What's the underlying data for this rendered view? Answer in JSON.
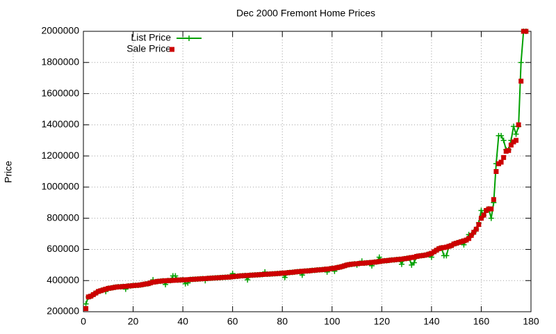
{
  "chart_data": {
    "type": "line",
    "title": "Dec 2000 Fremont Home Prices",
    "y_label": "Price",
    "x": [
      1,
      2,
      3,
      4,
      5,
      6,
      7,
      8,
      9,
      10,
      11,
      12,
      13,
      14,
      15,
      16,
      17,
      18,
      19,
      20,
      21,
      22,
      23,
      24,
      25,
      26,
      27,
      28,
      29,
      30,
      31,
      32,
      33,
      34,
      35,
      36,
      37,
      38,
      39,
      40,
      41,
      42,
      43,
      44,
      45,
      46,
      47,
      48,
      49,
      50,
      51,
      52,
      53,
      54,
      55,
      56,
      57,
      58,
      59,
      60,
      61,
      62,
      63,
      64,
      65,
      66,
      67,
      68,
      69,
      70,
      71,
      72,
      73,
      74,
      75,
      76,
      77,
      78,
      79,
      80,
      81,
      82,
      83,
      84,
      85,
      86,
      87,
      88,
      89,
      90,
      91,
      92,
      93,
      94,
      95,
      96,
      97,
      98,
      99,
      100,
      101,
      102,
      103,
      104,
      105,
      106,
      107,
      108,
      109,
      110,
      111,
      112,
      113,
      114,
      115,
      116,
      117,
      118,
      119,
      120,
      121,
      122,
      123,
      124,
      125,
      126,
      127,
      128,
      129,
      130,
      131,
      132,
      133,
      134,
      135,
      136,
      137,
      138,
      139,
      140,
      141,
      142,
      143,
      144,
      145,
      146,
      147,
      148,
      149,
      150,
      151,
      152,
      153,
      154,
      155,
      156,
      157,
      158,
      159,
      160,
      161,
      162,
      163,
      164,
      165,
      166,
      167,
      168,
      169,
      170,
      171,
      172,
      173,
      174,
      175,
      176,
      177,
      178
    ],
    "series": [
      {
        "name": "List Price",
        "color": "#00a000",
        "style": "linespoints",
        "values": [
          250000,
          295000,
          300000,
          310000,
          320000,
          330000,
          335000,
          340000,
          330000,
          350000,
          352000,
          355000,
          358000,
          360000,
          360000,
          362000,
          345000,
          365000,
          366000,
          368000,
          369000,
          370000,
          372000,
          375000,
          378000,
          380000,
          385000,
          405000,
          392000,
          395000,
          396000,
          398000,
          375000,
          400000,
          400000,
          430000,
          430000,
          403000,
          404000,
          405000,
          380000,
          385000,
          407000,
          408000,
          409000,
          410000,
          411000,
          412000,
          400000,
          414000,
          415000,
          416000,
          417000,
          418000,
          419000,
          420000,
          421000,
          422000,
          423000,
          445000,
          427000,
          428000,
          430000,
          431000,
          432000,
          405000,
          434000,
          435000,
          436000,
          437000,
          438000,
          439000,
          455000,
          441000,
          442000,
          443000,
          444000,
          445000,
          446000,
          448000,
          420000,
          450000,
          452000,
          453000,
          455000,
          457000,
          458000,
          435000,
          461000,
          462000,
          463000,
          465000,
          466000,
          468000,
          469000,
          470000,
          472000,
          455000,
          475000,
          478000,
          460000,
          483000,
          486000,
          490000,
          495000,
          500000,
          503000,
          505000,
          507000,
          500000,
          510000,
          525000,
          512000,
          514000,
          515000,
          495000,
          518000,
          520000,
          550000,
          525000,
          527000,
          528000,
          530000,
          532000,
          533000,
          535000,
          536000,
          505000,
          540000,
          542000,
          545000,
          500000,
          515000,
          555000,
          558000,
          560000,
          562000,
          565000,
          570000,
          550000,
          585000,
          595000,
          605000,
          610000,
          560000,
          560000,
          620000,
          625000,
          635000,
          640000,
          645000,
          650000,
          630000,
          660000,
          695000,
          690000,
          710000,
          730000,
          770000,
          850000,
          820000,
          850000,
          860000,
          800000,
          900000,
          1150000,
          1330000,
          1330000,
          1300000,
          1240000,
          1240000,
          1300000,
          1390000,
          1340000,
          1390000,
          1800000,
          2000000,
          2000000
        ]
      },
      {
        "name": "Sale Price",
        "color": "#cc0000",
        "style": "points",
        "values": [
          220000,
          295000,
          300000,
          310000,
          320000,
          330000,
          335000,
          340000,
          345000,
          350000,
          352000,
          355000,
          358000,
          360000,
          360000,
          362000,
          363000,
          365000,
          366000,
          368000,
          369000,
          370000,
          372000,
          375000,
          378000,
          380000,
          385000,
          390000,
          392000,
          395000,
          396000,
          398000,
          399000,
          400000,
          400000,
          401000,
          402000,
          403000,
          404000,
          405000,
          405000,
          406000,
          407000,
          408000,
          409000,
          410000,
          411000,
          412000,
          413000,
          414000,
          415000,
          416000,
          417000,
          418000,
          419000,
          420000,
          421000,
          422000,
          423000,
          425000,
          427000,
          428000,
          430000,
          431000,
          432000,
          433000,
          434000,
          435000,
          436000,
          437000,
          438000,
          439000,
          440000,
          441000,
          442000,
          443000,
          444000,
          445000,
          446000,
          448000,
          449000,
          450000,
          452000,
          453000,
          455000,
          457000,
          458000,
          460000,
          461000,
          462000,
          463000,
          465000,
          466000,
          468000,
          469000,
          470000,
          472000,
          474000,
          475000,
          478000,
          480000,
          483000,
          486000,
          490000,
          495000,
          500000,
          503000,
          505000,
          507000,
          508000,
          510000,
          511000,
          512000,
          514000,
          515000,
          517000,
          518000,
          520000,
          522000,
          525000,
          527000,
          528000,
          530000,
          532000,
          533000,
          535000,
          536000,
          538000,
          540000,
          542000,
          545000,
          548000,
          550000,
          555000,
          558000,
          560000,
          562000,
          565000,
          570000,
          575000,
          585000,
          595000,
          605000,
          610000,
          612000,
          615000,
          620000,
          625000,
          635000,
          640000,
          645000,
          650000,
          655000,
          660000,
          670000,
          690000,
          710000,
          730000,
          760000,
          800000,
          820000,
          850000,
          860000,
          860000,
          920000,
          1100000,
          1150000,
          1160000,
          1190000,
          1230000,
          1235000,
          1270000,
          1290000,
          1300000,
          1400000,
          1680000,
          2000000,
          2000000
        ]
      }
    ],
    "xlim": [
      0,
      180
    ],
    "xticks": [
      0,
      20,
      40,
      60,
      80,
      100,
      120,
      140,
      160,
      180
    ],
    "ylim": [
      200000,
      2000000
    ],
    "yticks": [
      200000,
      400000,
      600000,
      800000,
      1000000,
      1200000,
      1400000,
      1600000,
      1800000,
      2000000
    ],
    "grid": true,
    "legend": "top-left"
  }
}
